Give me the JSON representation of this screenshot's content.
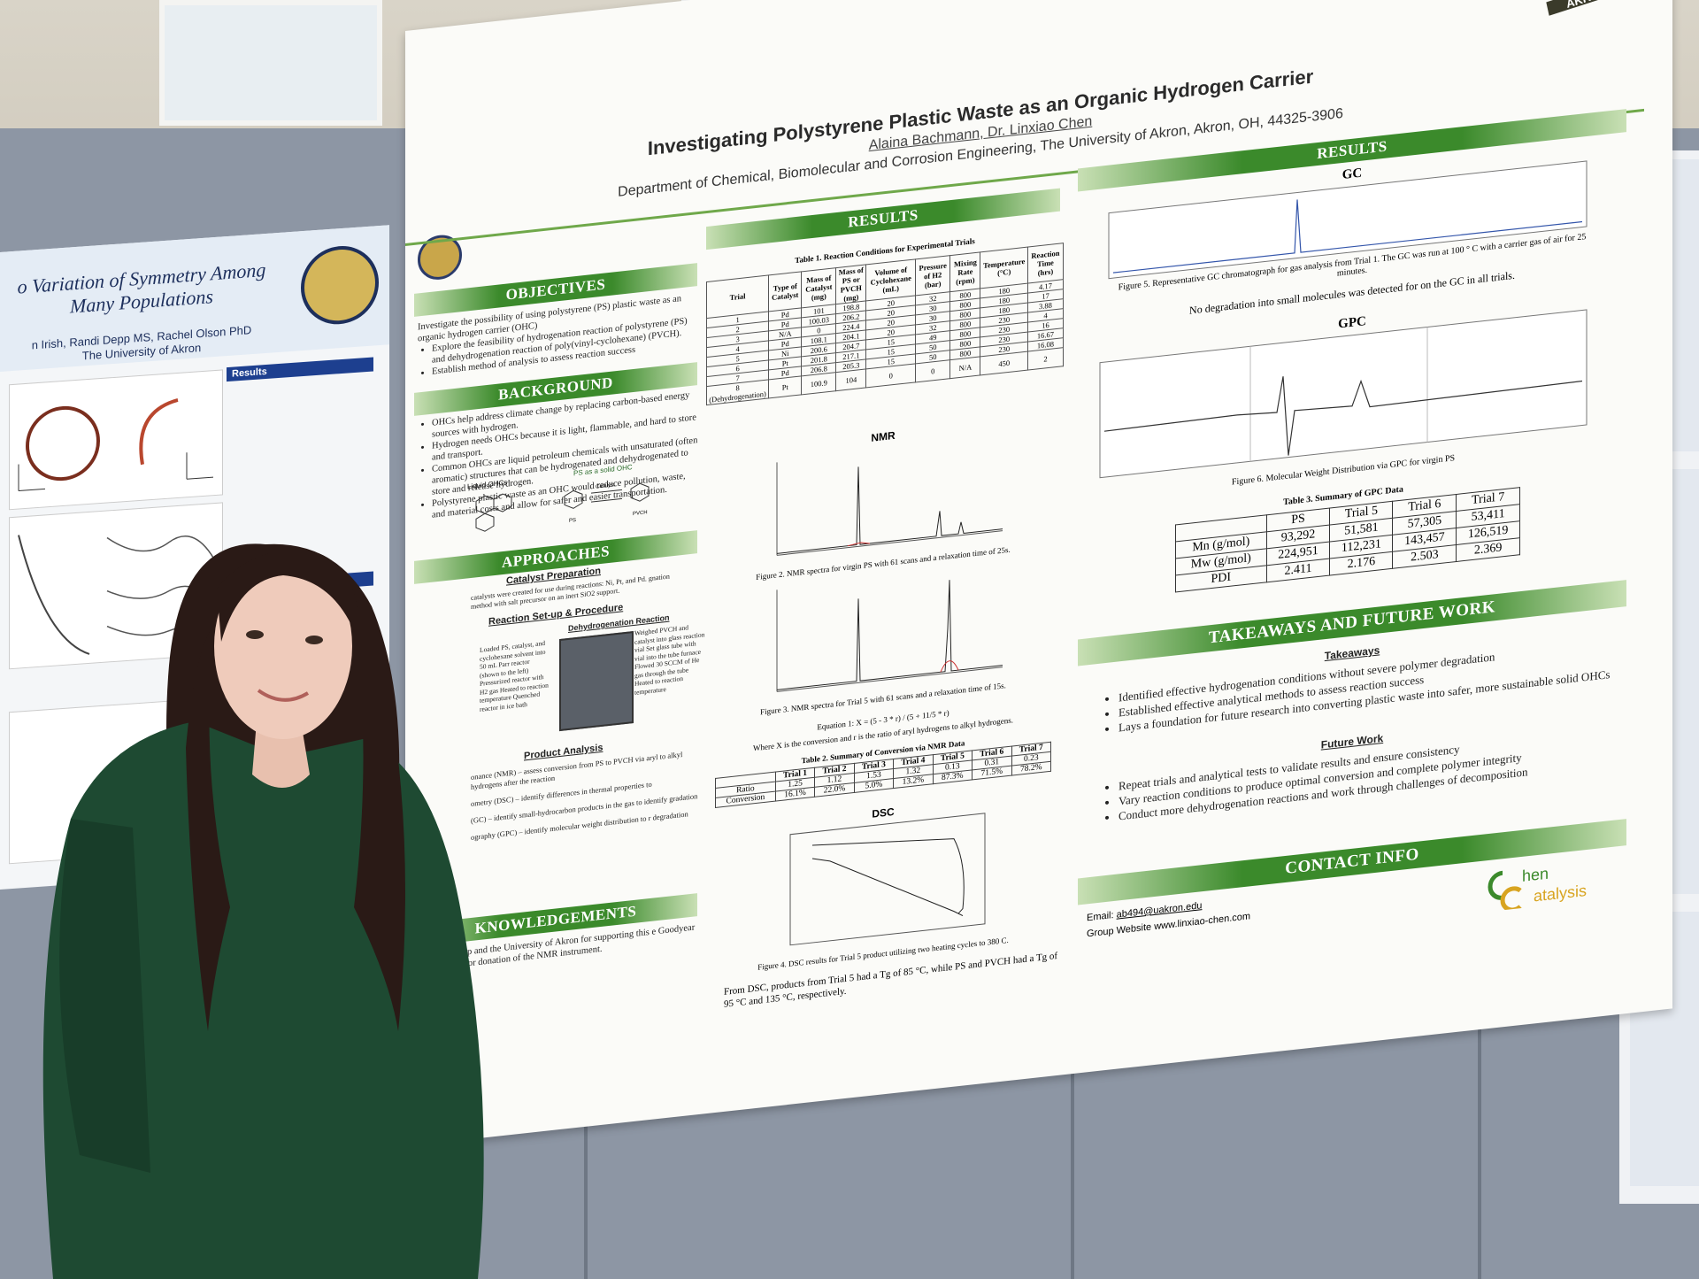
{
  "left_poster": {
    "title": "o Variation of Symmetry Among Many Populations",
    "authors": "n Irish, Randi Depp MS, Rachel Olson PhD",
    "affiliation": "The University of Akron",
    "results_label": "Results",
    "discussion_label": "Discussion"
  },
  "poster": {
    "title": "Investigating Polystyrene Plastic Waste as an Organic Hydrogen Carrier",
    "authors": "Alaina Bachmann, Dr. Linxiao Chen",
    "department": "Department of Chemical, Biomolecular and Corrosion Engineering, The University of Akron, Akron, OH, 44325-3906",
    "logo_text": "AKRON",
    "objectives": {
      "heading": "OBJECTIVES",
      "intro": "Investigate the possibility of using polystyrene (PS) plastic waste as an organic hydrogen carrier (OHC)",
      "items": [
        "Explore the feasibility of hydrogenation reaction of polystyrene (PS) and dehydrogenation reaction of poly(vinyl-cyclohexane) (PVCH).",
        "Establish method of analysis to assess reaction success"
      ]
    },
    "background": {
      "heading": "BACKGROUND",
      "items": [
        "OHCs help address climate change by replacing carbon-based energy sources with hydrogen.",
        "Hydrogen needs OHCs because it is light, flammable, and hard to store and transport.",
        "Common OHCs are liquid petroleum chemicals with unsaturated (often aromatic) structures that can be hydrogenated and dehydrogenated to store and release hydrogen.",
        "Polystyrene plastic waste as an OHC would reduce pollution, waste, and material costs and allow for safer and easier transportation."
      ],
      "fig_label_left": "Liquid OHCs",
      "fig_label_right": "PS as a solid OHC",
      "fig_ps": "PS",
      "fig_pvch": "PVCH",
      "fig_catalyst": "Catalyst"
    },
    "approaches": {
      "heading": "APPROACHES",
      "catalyst_prep": "Catalyst Preparation",
      "catalyst_text": "catalysts were created for use during reactions: Ni, Pt, and Pd. gnation method with salt precursor on an inert SiO2 support.",
      "reaction_setup": "Reaction Set-up & Procedure",
      "dehydrogenation": "Dehydrogenation Reaction",
      "left_steps": "Loaded PS, catalyst, and cyclohexane solvent into 50 mL Parr reactor (shown to the left) Pressurized reactor with H2 gas Heated to reaction temperature Quenched reactor in ice bath",
      "right_steps": "Weighed PVCH and catalyst into glass reaction vial Set glass tube with vial into the tube furnace Flowed 30 SCCM of He gas through the tube Heated to reaction temperature",
      "product_analysis": "Product Analysis",
      "analysis_items": [
        "onance (NMR) – assess conversion from PS to PVCH via aryl to alkyl hydrogens after the reaction",
        "ometry (DSC) – identify differences in thermal properties to",
        "(GC) – identify small-hydrocarbon products in the gas to identify gradation",
        "ography (GPC) – identify molecular weight distribution to r degradation"
      ]
    },
    "acknowledgements": {
      "heading": "KNOWLEDGEMENTS",
      "text": "hen Lab group and the University of Akron for supporting this e Goodyear Corporation for donation of the NMR instrument."
    },
    "results_mid": {
      "heading": "RESULTS",
      "table1_caption": "Table 1. Reaction Conditions for Experimental Trials",
      "table1_headers": [
        "Trial",
        "Type of Catalyst",
        "Mass of Catalyst (mg)",
        "Mass of PS or PVCH (mg)",
        "Volume of Cyclohexane (mL)",
        "Pressure of H2 (bar)",
        "Mixing Rate (rpm)",
        "Temperature (°C)",
        "Reaction Time (hrs)"
      ],
      "table1_rows": [
        [
          "1",
          "Pd",
          "101",
          "198.8",
          "20",
          "32",
          "800",
          "180",
          "4.17"
        ],
        [
          "2",
          "Pd",
          "100.03",
          "206.2",
          "20",
          "30",
          "800",
          "180",
          "17"
        ],
        [
          "3",
          "N/A",
          "0",
          "224.4",
          "20",
          "30",
          "800",
          "180",
          "3.88"
        ],
        [
          "4",
          "Pd",
          "108.1",
          "204.1",
          "20",
          "32",
          "800",
          "230",
          "4"
        ],
        [
          "5",
          "Ni",
          "200.6",
          "204.7",
          "15",
          "49",
          "800",
          "230",
          "16"
        ],
        [
          "6",
          "Pt",
          "201.8",
          "217.1",
          "15",
          "50",
          "800",
          "230",
          "16.67"
        ],
        [
          "7",
          "Pd",
          "206.8",
          "205.3",
          "15",
          "50",
          "800",
          "230",
          "16.08"
        ],
        [
          "8 (Dehydrogenation)",
          "Pt",
          "100.9",
          "104",
          "0",
          "0",
          "N/A",
          "450",
          "2"
        ]
      ],
      "nmr_title": "NMR",
      "fig2_caption": "Figure 2. NMR spectra for virgin PS with 61 scans and a relaxation time of 25s.",
      "fig3_caption": "Figure 3. NMR spectra for Trial 5 with 61 scans and a relaxation time of 15s.",
      "equation": "Equation 1: X = (5 - 3 * r) / (5 + 11/5 * r)",
      "equation_note": "Where X is the conversion and r is the ratio of aryl hydrogens to alkyl hydrogens.",
      "table2_caption": "Table 2. Summary of Conversion via NMR Data",
      "table2_headers": [
        "",
        "Trial 1",
        "Trial 2",
        "Trial 3",
        "Trial 4",
        "Trial 5",
        "Trial 6",
        "Trial 7"
      ],
      "table2_rows": [
        [
          "Ratio",
          "1.25",
          "1.12",
          "1.53",
          "1.32",
          "0.13",
          "0.31",
          "0.23"
        ],
        [
          "Conversion",
          "16.1%",
          "22.0%",
          "5.0%",
          "13.2%",
          "87.3%",
          "71.5%",
          "78.2%"
        ]
      ],
      "dsc_title": "DSC",
      "fig4_caption": "Figure 4. DSC results for Trial 5 product utilizing two heating cycles to 380 C.",
      "dsc_text": "From DSC, products from Trial 5 had a Tg of 85 °C, while PS and PVCH had a Tg of 95 °C and 135 °C, respectively."
    },
    "results_right": {
      "heading": "RESULTS",
      "gc_title": "GC",
      "fig5_caption": "Figure 5. Representative GC chromatograph for gas analysis from Trial 1. The GC was run at 100 ° C with a carrier gas of air for 25 minutes.",
      "gc_note": "No degradation into small molecules was detected for on the GC in all trials.",
      "gpc_title": "GPC",
      "fig6_caption": "Figure 6. Molecular Weight Distribution via GPC for virgin PS",
      "table3_caption": "Table 3. Summary of GPC Data",
      "table3_headers": [
        "",
        "PS",
        "Trial 5",
        "Trial 6",
        "Trial 7"
      ],
      "table3_rows": [
        [
          "Mn (g/mol)",
          "93,292",
          "51,581",
          "57,305",
          "53,411"
        ],
        [
          "Mw (g/mol)",
          "224,951",
          "112,231",
          "143,457",
          "126,519"
        ],
        [
          "PDI",
          "2.411",
          "2.176",
          "2.503",
          "2.369"
        ]
      ]
    },
    "takeaways": {
      "heading": "TAKEAWAYS AND FUTURE WORK",
      "takeaways_label": "Takeaways",
      "takeaways_items": [
        "Identified effective hydrogenation conditions without severe polymer degradation",
        "Established effective analytical methods to assess reaction success",
        "Lays a foundation for future research into converting plastic waste into safer, more sustainable solid OHCs"
      ],
      "future_label": "Future Work",
      "future_items": [
        "Repeat trials and analytical tests to validate results and ensure consistency",
        "Vary reaction conditions to produce optimal conversion and complete polymer integrity",
        "Conduct more dehydrogenation reactions and work through challenges of decomposition"
      ]
    },
    "contact": {
      "heading": "CONTACT INFO",
      "email_label": "Email:",
      "email": "ab494@uakron.edu",
      "website": "Group Website www.linxiao-chen.com",
      "logo_line1": "hen",
      "logo_line2": "atalysis"
    }
  },
  "colors": {
    "poster_green": "#3b8a2b",
    "left_poster_blue": "#1d3f8f",
    "board_gray": "#8d96a4",
    "sweater_green": "#1e4a32"
  }
}
